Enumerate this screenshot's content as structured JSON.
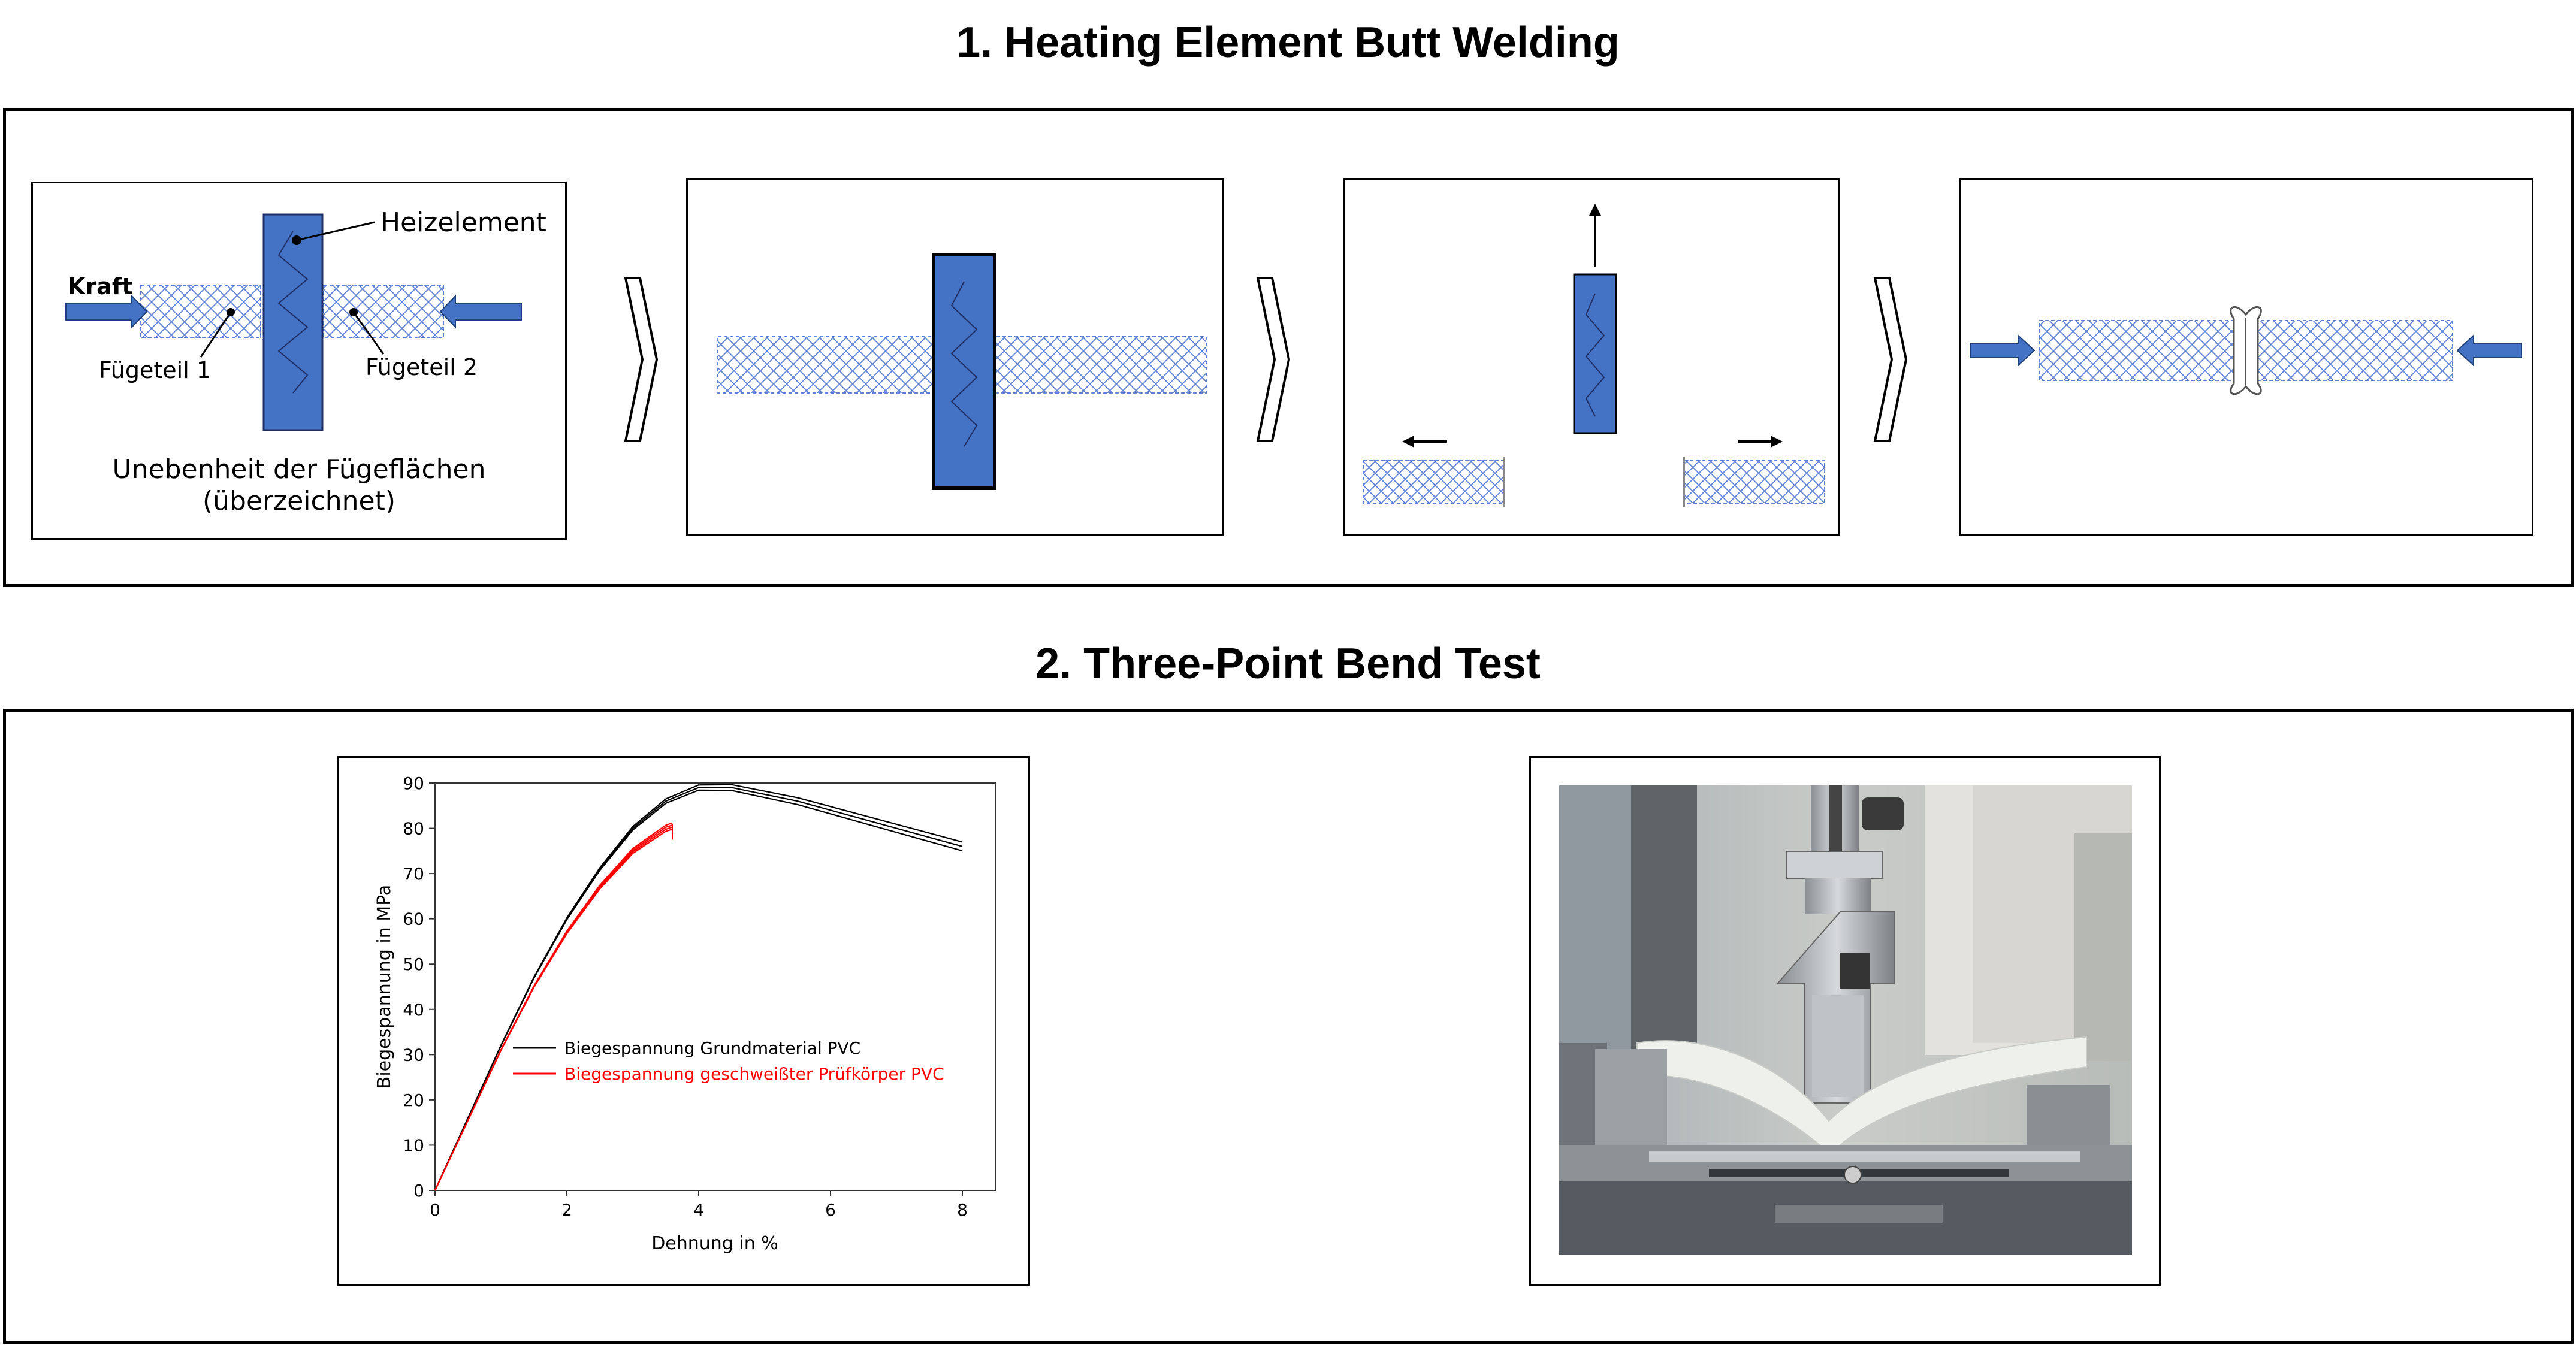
{
  "section1": {
    "title": "1. Heating Element Butt Welding",
    "panel1": {
      "heizelement": "Heizelement",
      "kraft": "Kraft",
      "fuegeteil1": "Fügeteil 1",
      "fuegeteil2": "Fügeteil 2",
      "caption_line1": "Unebenheit der Fügeflächen",
      "caption_line2": "(überzeichnet)"
    }
  },
  "section2": {
    "title": "2. Three-Point Bend Test"
  },
  "colors": {
    "heater_blue": "#4472c4",
    "hatch_blue": "#5b7fd6",
    "series_black": "#000000",
    "series_red": "#ff0000"
  },
  "chart_data": {
    "type": "line",
    "xlabel": "Dehnung in %",
    "ylabel": "Biegespannung in MPa",
    "xlim": [
      0,
      8.5
    ],
    "ylim": [
      0,
      90
    ],
    "xticks": [
      "0",
      "2",
      "4",
      "6",
      "8"
    ],
    "yticks": [
      "0",
      "10",
      "20",
      "30",
      "40",
      "50",
      "60",
      "70",
      "80",
      "90"
    ],
    "legend_position": "center-right",
    "series": [
      {
        "name": "Biegespannung Grundmaterial PVC",
        "color": "#000000",
        "x": [
          0,
          0.5,
          1,
          1.5,
          2,
          2.5,
          3,
          3.5,
          4,
          4.5,
          5,
          5.5,
          6,
          6.5,
          7,
          7.5,
          8
        ],
        "y": [
          0,
          16,
          32,
          47,
          60,
          71,
          80,
          86,
          89,
          89,
          87.5,
          86,
          84,
          82,
          80,
          78,
          76
        ]
      },
      {
        "name": "Biegespannung geschweißter Prüfkörper PVC",
        "color": "#ff0000",
        "x": [
          0,
          0.5,
          1,
          1.5,
          2,
          2.5,
          3,
          3.3,
          3.5,
          3.6
        ],
        "y": [
          0,
          15.5,
          31,
          45,
          57,
          67,
          75,
          78,
          80,
          80.5
        ]
      }
    ]
  }
}
